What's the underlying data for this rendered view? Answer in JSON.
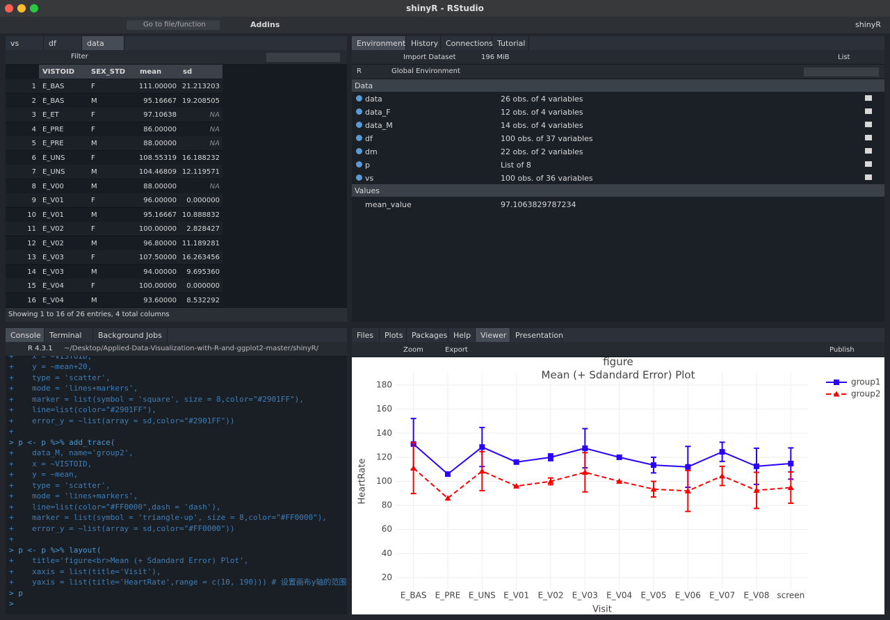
{
  "window": {
    "title": "shinyR - RStudio"
  },
  "toolbar": {
    "goto": "Go to file/function",
    "addins": "Addins",
    "project": "shinyR"
  },
  "data_viewer": {
    "tabs": [
      "vs",
      "df",
      "data"
    ],
    "filter": "Filter",
    "columns": [
      "VISTOID",
      "SEX_STD",
      "mean",
      "sd"
    ],
    "rows": [
      [
        "1",
        "E_BAS",
        "F",
        "111.00000",
        "21.213203"
      ],
      [
        "2",
        "E_BAS",
        "M",
        "95.16667",
        "19.208505"
      ],
      [
        "3",
        "E_ET",
        "F",
        "97.10638",
        "NA"
      ],
      [
        "4",
        "E_PRE",
        "F",
        "86.00000",
        "NA"
      ],
      [
        "5",
        "E_PRE",
        "M",
        "88.00000",
        "NA"
      ],
      [
        "6",
        "E_UNS",
        "F",
        "108.55319",
        "16.188232"
      ],
      [
        "7",
        "E_UNS",
        "M",
        "104.46809",
        "12.119571"
      ],
      [
        "8",
        "E_V00",
        "M",
        "88.00000",
        "NA"
      ],
      [
        "9",
        "E_V01",
        "F",
        "96.00000",
        "0.000000"
      ],
      [
        "10",
        "E_V01",
        "M",
        "95.16667",
        "10.888832"
      ],
      [
        "11",
        "E_V02",
        "F",
        "100.00000",
        "2.828427"
      ],
      [
        "12",
        "E_V02",
        "M",
        "96.80000",
        "11.189281"
      ],
      [
        "13",
        "E_V03",
        "F",
        "107.50000",
        "16.263456"
      ],
      [
        "14",
        "E_V03",
        "M",
        "94.00000",
        "9.695360"
      ],
      [
        "15",
        "E_V04",
        "F",
        "100.00000",
        "0.000000"
      ],
      [
        "16",
        "E_V04",
        "M",
        "93.60000",
        "8.532292"
      ]
    ],
    "footer": "Showing 1 to 16 of 26 entries, 4 total columns"
  },
  "environment": {
    "tabs": [
      "Environment",
      "History",
      "Connections",
      "Tutorial"
    ],
    "import": "Import Dataset",
    "memory": "196 MiB",
    "view": "List",
    "language": "R",
    "scope": "Global Environment",
    "data_header": "Data",
    "data": [
      {
        "name": "data",
        "value": "26 obs. of 4 variables"
      },
      {
        "name": "data_F",
        "value": "12 obs. of 4 variables"
      },
      {
        "name": "data_M",
        "value": "14 obs. of 4 variables"
      },
      {
        "name": "df",
        "value": "100 obs. of 37 variables"
      },
      {
        "name": "dm",
        "value": "22 obs. of 2 variables"
      },
      {
        "name": "p",
        "value": "List of  8"
      },
      {
        "name": "vs",
        "value": "100 obs. of 36 variables"
      }
    ],
    "values_header": "Values",
    "values": [
      {
        "name": "mean_value",
        "value": "97.1063829787234"
      }
    ]
  },
  "console": {
    "tabs": [
      "Console",
      "Terminal",
      "Background Jobs"
    ],
    "version": "R 4.3.1",
    "path": "~/Desktop/Applied-Data-Visualization-with-R-and-ggplot2-master/shinyR/",
    "lines": [
      "+    x = ~VISTOID,",
      "+    y = ~mean+20,",
      "+    type = 'scatter',",
      "+    mode = 'lines+markers',",
      "+    marker = list(symbol = 'square', size = 8,color=\"#2901FF\"),",
      "+    line=list(color=\"#2901FF\"),",
      "+    error_y = ~list(array = sd,color=\"#2901FF\"))",
      "+",
      "> p <- p %>% add_trace(",
      "+    data_M, name='group2',",
      "+    x = ~VISTOID,",
      "+    y = ~mean,",
      "+    type = 'scatter',",
      "+    mode = 'lines+markers',",
      "+    line=list(color=\"#FF0000\",dash = 'dash'),",
      "+    marker = list(symbol = 'triangle-up', size = 8,color=\"#FF0000\"),",
      "+    error_y = ~list(array = sd,color=\"#FF0000\"))",
      "+",
      "> p <- p %>% layout(",
      "+    title='figure<br>Mean (+ Sdandard Error) Plot',",
      "+    xaxis = list(title='Visit'),",
      "+    yaxis = list(title='HeartRate',range = c(10, 190))) # 设置画布y轴的范围",
      "> p",
      ">"
    ]
  },
  "viewer": {
    "tabs": [
      "Files",
      "Plots",
      "Packages",
      "Help",
      "Viewer",
      "Presentation"
    ],
    "zoom": "Zoom",
    "export": "Export",
    "publish": "Publish"
  },
  "chart_data": {
    "type": "line",
    "title": "figure",
    "subtitle": "Mean (+ Sdandard Error) Plot",
    "xlabel": "Visit",
    "ylabel": "HeartRate",
    "categories": [
      "E_BAS",
      "E_PRE",
      "E_UNS",
      "E_V01",
      "E_V02",
      "E_V03",
      "E_V04",
      "E_V05",
      "E_V06",
      "E_V07",
      "E_V08",
      "screen"
    ],
    "series": [
      {
        "name": "group1",
        "color": "#2901FF",
        "marker": "square",
        "dash": false,
        "values": [
          131,
          106,
          128.5,
          116,
          120,
          127.5,
          120,
          113.5,
          112,
          124.5,
          112.5,
          114.8
        ],
        "errors": [
          21.2,
          null,
          16.2,
          0,
          2.8,
          16.3,
          0,
          6.5,
          17,
          8,
          15,
          13
        ]
      },
      {
        "name": "group2",
        "color": "#FF0000",
        "marker": "triangle-up",
        "dash": true,
        "values": [
          111,
          86,
          108.5,
          96,
          100,
          107.5,
          100,
          93.5,
          92,
          104.5,
          92.5,
          94.8
        ],
        "errors": [
          21.2,
          null,
          16.2,
          0,
          2.8,
          16.3,
          0,
          6.5,
          17,
          8,
          15,
          13
        ]
      }
    ],
    "ylim": [
      10,
      190
    ],
    "yticks": [
      20,
      40,
      60,
      80,
      100,
      120,
      140,
      160,
      180
    ],
    "grid": true,
    "legend": "top-right"
  }
}
